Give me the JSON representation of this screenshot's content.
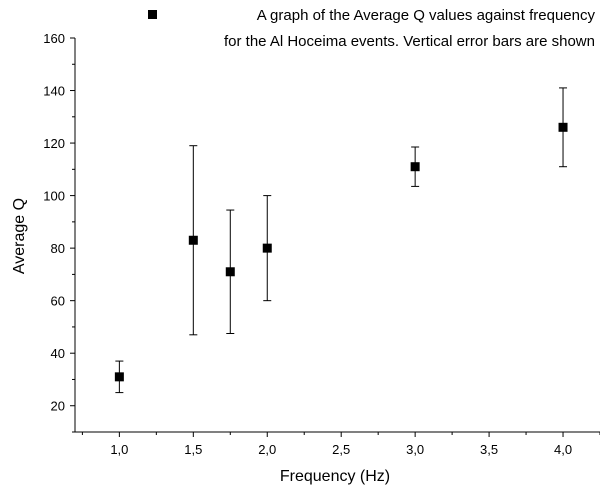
{
  "chart_data": {
    "type": "scatter",
    "xlabel": "Frequency (Hz)",
    "ylabel": "Average Q",
    "xlim": [
      0.7,
      4.25
    ],
    "ylim": [
      10,
      160
    ],
    "x_ticks": [
      "1,0",
      "1,5",
      "2,0",
      "2,5",
      "3,0",
      "3,5",
      "4,0"
    ],
    "x_tick_values": [
      1.0,
      1.5,
      2.0,
      2.5,
      3.0,
      3.5,
      4.0
    ],
    "y_ticks": [
      "20",
      "40",
      "60",
      "80",
      "100",
      "120",
      "140",
      "160"
    ],
    "y_tick_values": [
      20,
      40,
      60,
      80,
      100,
      120,
      140,
      160
    ],
    "grid": false,
    "legend_position": "top-right",
    "series": [
      {
        "name_lines": [
          "A graph of the Average Q values against frequency",
          "for the Al Hoceima events. Vertical error bars are shown"
        ],
        "marker": "square",
        "color": "#000000",
        "points": [
          {
            "x": 1.0,
            "y": 31,
            "y_low": 25,
            "y_high": 37
          },
          {
            "x": 1.5,
            "y": 83,
            "y_low": 47,
            "y_high": 119
          },
          {
            "x": 1.75,
            "y": 71,
            "y_low": 47.5,
            "y_high": 94.5
          },
          {
            "x": 2.0,
            "y": 80,
            "y_low": 60,
            "y_high": 100
          },
          {
            "x": 3.0,
            "y": 111,
            "y_low": 103.5,
            "y_high": 118.5
          },
          {
            "x": 4.0,
            "y": 126,
            "y_low": 111,
            "y_high": 141
          }
        ]
      }
    ]
  }
}
